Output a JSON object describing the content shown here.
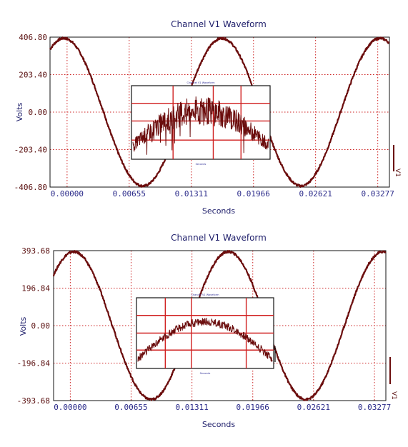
{
  "colors": {
    "wave": "#6b0d0d",
    "grid": "#cc2222",
    "title": "#1f1f6b"
  },
  "chart_data": [
    {
      "type": "line",
      "title": "Channel V1 Waveform",
      "xlabel": "Seconds",
      "ylabel": "Volts",
      "legend": "V1",
      "xlim": [
        -0.0018,
        0.034
      ],
      "ylim": [
        -406.8,
        406.8
      ],
      "y_ticks": [
        "406.80",
        "203.40",
        "0.00",
        "-203.40",
        "-406.80"
      ],
      "x_ticks": [
        "0.00000",
        "0.00655",
        "0.01311",
        "0.01966",
        "0.02621",
        "0.03277"
      ],
      "grid": true,
      "series": [
        {
          "name": "V1",
          "amplitude": 406.8,
          "phase_deg": 97,
          "frequency_hz": 60,
          "x": [
            -0.0018,
            0.0,
            0.002,
            0.004,
            0.006,
            0.008,
            0.01,
            0.012,
            0.014,
            0.016,
            0.018,
            0.02,
            0.022,
            0.024,
            0.026,
            0.028,
            0.03,
            0.032,
            0.034
          ],
          "y": [
            55,
            -49,
            -264,
            -391,
            -390,
            -263,
            -48,
            177,
            352,
            404,
            313,
            107,
            -130,
            -325,
            -405,
            -341,
            -165,
            62,
            263
          ]
        }
      ],
      "inset": {
        "title": "Channel V1 Waveform",
        "xlabel": "Seconds"
      }
    },
    {
      "type": "line",
      "title": "Channel V1 Waveform",
      "xlabel": "Seconds",
      "ylabel": "Volts",
      "legend": "V1",
      "xlim": [
        -0.0018,
        0.034
      ],
      "ylim": [
        -393.68,
        393.68
      ],
      "y_ticks": [
        "393.68",
        "196.84",
        "0.00",
        "-196.84",
        "-393.68"
      ],
      "x_ticks": [
        "0.00000",
        "0.00655",
        "0.01311",
        "0.01966",
        "0.02621",
        "0.03277"
      ],
      "grid": true,
      "series": [
        {
          "name": "V1",
          "amplitude": 393.68,
          "phase_deg": 82,
          "frequency_hz": 60,
          "x": [
            -0.0018,
            0.0,
            0.002,
            0.004,
            0.006,
            0.008,
            0.01,
            0.012,
            0.014,
            0.016,
            0.018,
            0.02,
            0.022,
            0.024,
            0.026,
            0.028,
            0.03,
            0.032,
            0.034
          ],
          "y": [
            393,
            333,
            126,
            -130,
            -330,
            -390,
            -277,
            -47,
            201,
            369,
            379,
            229,
            -18,
            -257,
            -392,
            -359,
            -172,
            73,
            288
          ]
        }
      ],
      "inset": {
        "title": "Channel V1 Waveform",
        "xlabel": "Seconds"
      }
    }
  ]
}
